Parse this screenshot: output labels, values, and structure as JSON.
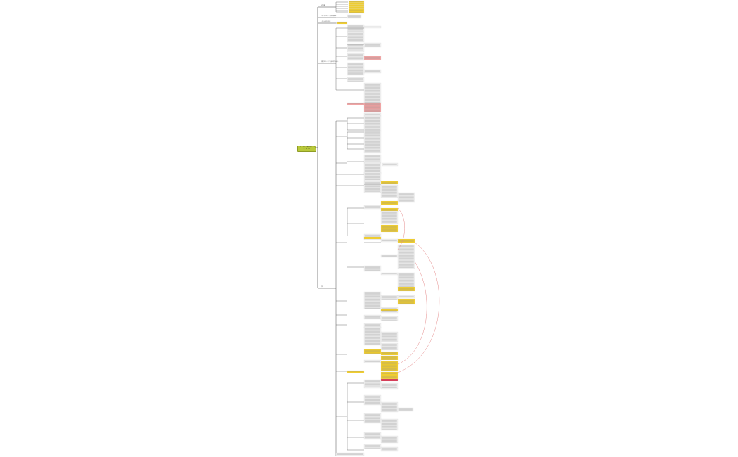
{
  "root": {
    "label": "ソフトウエア開発のナレッジ・マップ",
    "color": "#b9c93a"
  },
  "branches": [
    {
      "label": "要件定義"
    },
    {
      "label": "ステークホルダー要求の明確化"
    },
    {
      "label": "システム化の方向性"
    },
    {
      "label": "業務のモデリング・要求の洗い出し"
    },
    {
      "label": "設計"
    }
  ],
  "colors": {
    "line": "#3a3a3a",
    "node_fill": "#f2f2f2",
    "node_border": "#c8c8c8",
    "highlight_yellow": "#f6cf1e",
    "highlight_pink": "#f4a0a0",
    "highlight_red": "#d72f4d",
    "relation": "#e58a8a"
  }
}
